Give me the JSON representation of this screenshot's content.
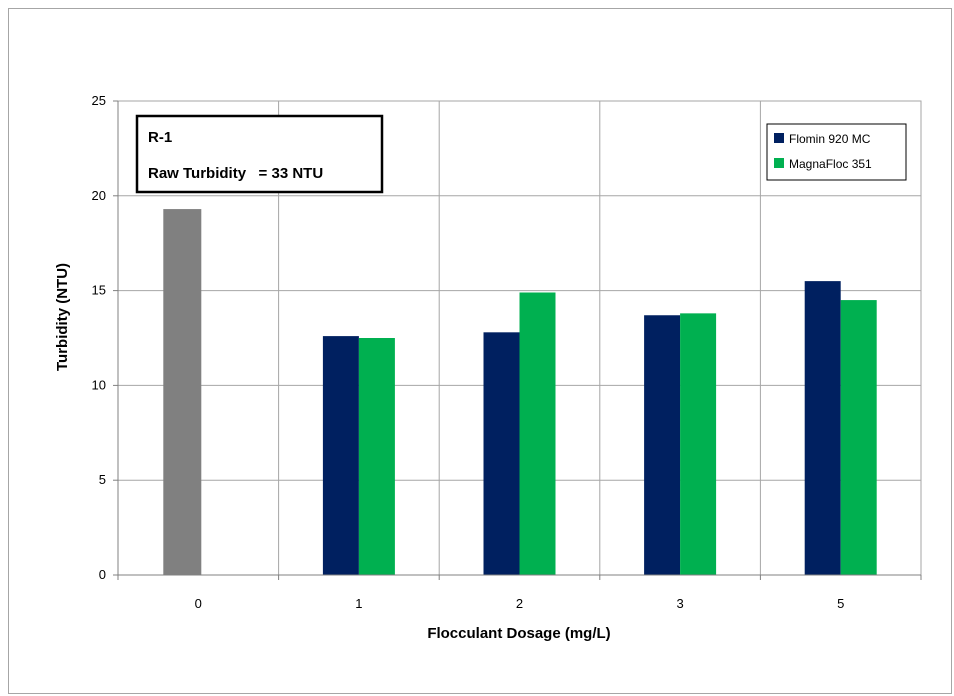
{
  "chart_data": {
    "type": "bar",
    "categories": [
      "0",
      "1",
      "2",
      "3",
      "5"
    ],
    "baseline": {
      "category": "0",
      "value": 19.3,
      "color": "#808080"
    },
    "series": [
      {
        "name": "Flomin 920 MC",
        "color": "#002060",
        "values": [
          null,
          12.6,
          12.8,
          13.7,
          15.5
        ]
      },
      {
        "name": "MagnaFloc 351",
        "color": "#00b050",
        "values": [
          null,
          12.5,
          14.9,
          13.8,
          14.5
        ]
      }
    ],
    "xlabel": "Flocculant Dosage (mg/L)",
    "ylabel": "Turbidity (NTU)",
    "ylim": [
      0,
      25
    ],
    "yticks": [
      "0",
      "5",
      "10",
      "15",
      "20",
      "25"
    ],
    "grid": true,
    "legend_position": "top-right",
    "annotation": {
      "line1": "R-1",
      "line2": "Raw Turbidity   = 33 NTU"
    }
  }
}
